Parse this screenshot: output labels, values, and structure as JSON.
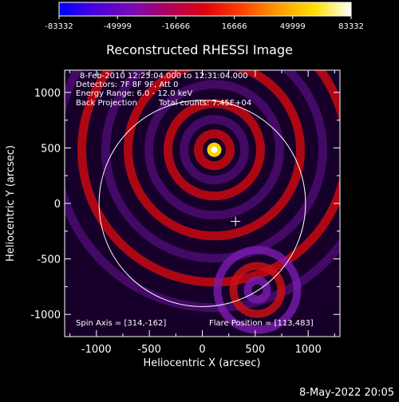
{
  "colorbar": {
    "ticks": [
      "-83332",
      "-49999",
      "-16666",
      "16666",
      "49999",
      "83332"
    ],
    "min": -83332,
    "max": 83332,
    "gradient_stops": [
      "#0000ff",
      "#4b00e0",
      "#7a0bb5",
      "#b0005a",
      "#e00010",
      "#ff4000",
      "#ff9a00",
      "#ffe000",
      "#ffffff"
    ]
  },
  "chart_data": {
    "type": "heatmap",
    "title": "Reconstructed RHESSI Image",
    "xlabel": "Heliocentric X (arcsec)",
    "ylabel": "Heliocentric Y (arcsec)",
    "xlim": [
      -1300,
      1300
    ],
    "ylim": [
      -1200,
      1200
    ],
    "x_ticks": [
      -1000,
      -500,
      0,
      500,
      1000
    ],
    "y_ticks": [
      1000,
      500,
      0,
      -500,
      -1000
    ],
    "annotations": {
      "line1": "8-Feb-2010 12:25:04.000 to 12:31:04.000",
      "line2": "Detectors: 7F 8F 9F, Att 0",
      "line3": "Energy Range: 6.0 - 12.0 keV",
      "line4_method": "Back Projection",
      "line4_counts": "Total counts: 7.45E+04",
      "spin_axis": "Spin Axis = [314,-162]",
      "flare_position": "Flare Position = [113,483]"
    },
    "spin_axis": [
      314,
      -162
    ],
    "flare_position": [
      113,
      483
    ],
    "solar_disk_radius": 975
  },
  "footer": {
    "date": "8-May-2022 20:05"
  }
}
